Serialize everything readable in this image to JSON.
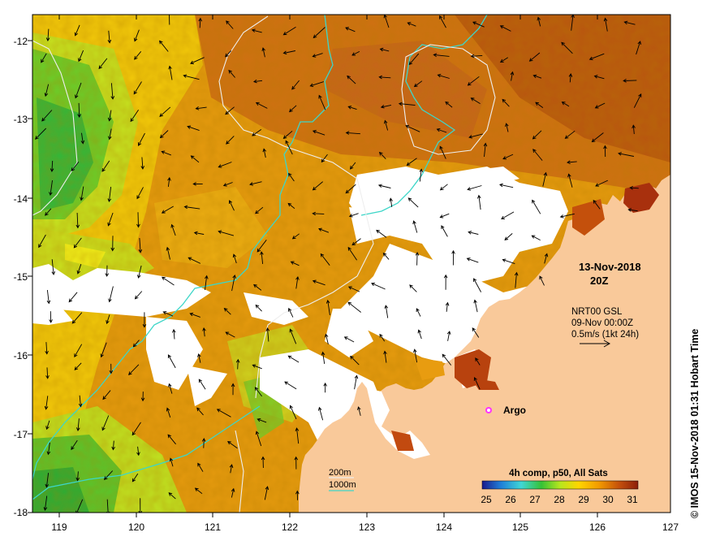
{
  "map": {
    "lon_range": [
      118.6,
      127.0
    ],
    "lat_range": [
      -18.0,
      -11.75
    ],
    "lon_ticks": [
      "119",
      "120",
      "121",
      "122",
      "123",
      "124",
      "125",
      "126",
      "127"
    ],
    "lat_ticks": [
      "-12",
      "-13",
      "-14",
      "-15",
      "-16",
      "-17",
      "-18"
    ],
    "colors": {
      "land": "#f9c99a",
      "cloud": "#ffffff",
      "contour_200m": "#f2f2f2",
      "contour_1000m": "#3dd6c8",
      "argo": "#ff33ff"
    }
  },
  "annotations": {
    "date": "13-Nov-2018",
    "hour": "20Z",
    "current_model": "NRT00 GSL",
    "current_time": "09-Nov 00:00Z",
    "current_scale": "0.5m/s (1kt 24h)",
    "argo_label": "Argo",
    "legend_200m": "200m",
    "legend_1000m": "1000m"
  },
  "colorbar": {
    "title": "4h comp, p50, All Sats",
    "ticks": [
      "25",
      "26",
      "27",
      "28",
      "29",
      "30",
      "31"
    ],
    "stops": [
      "#1a1a8c",
      "#1f7fd8",
      "#3fd6d6",
      "#36c236",
      "#b7e61e",
      "#ffd500",
      "#f29a00",
      "#c4500c",
      "#8c1f0a"
    ]
  },
  "credit": "© IMOS 15-Nov-2018 01:31 Hobart Time"
}
